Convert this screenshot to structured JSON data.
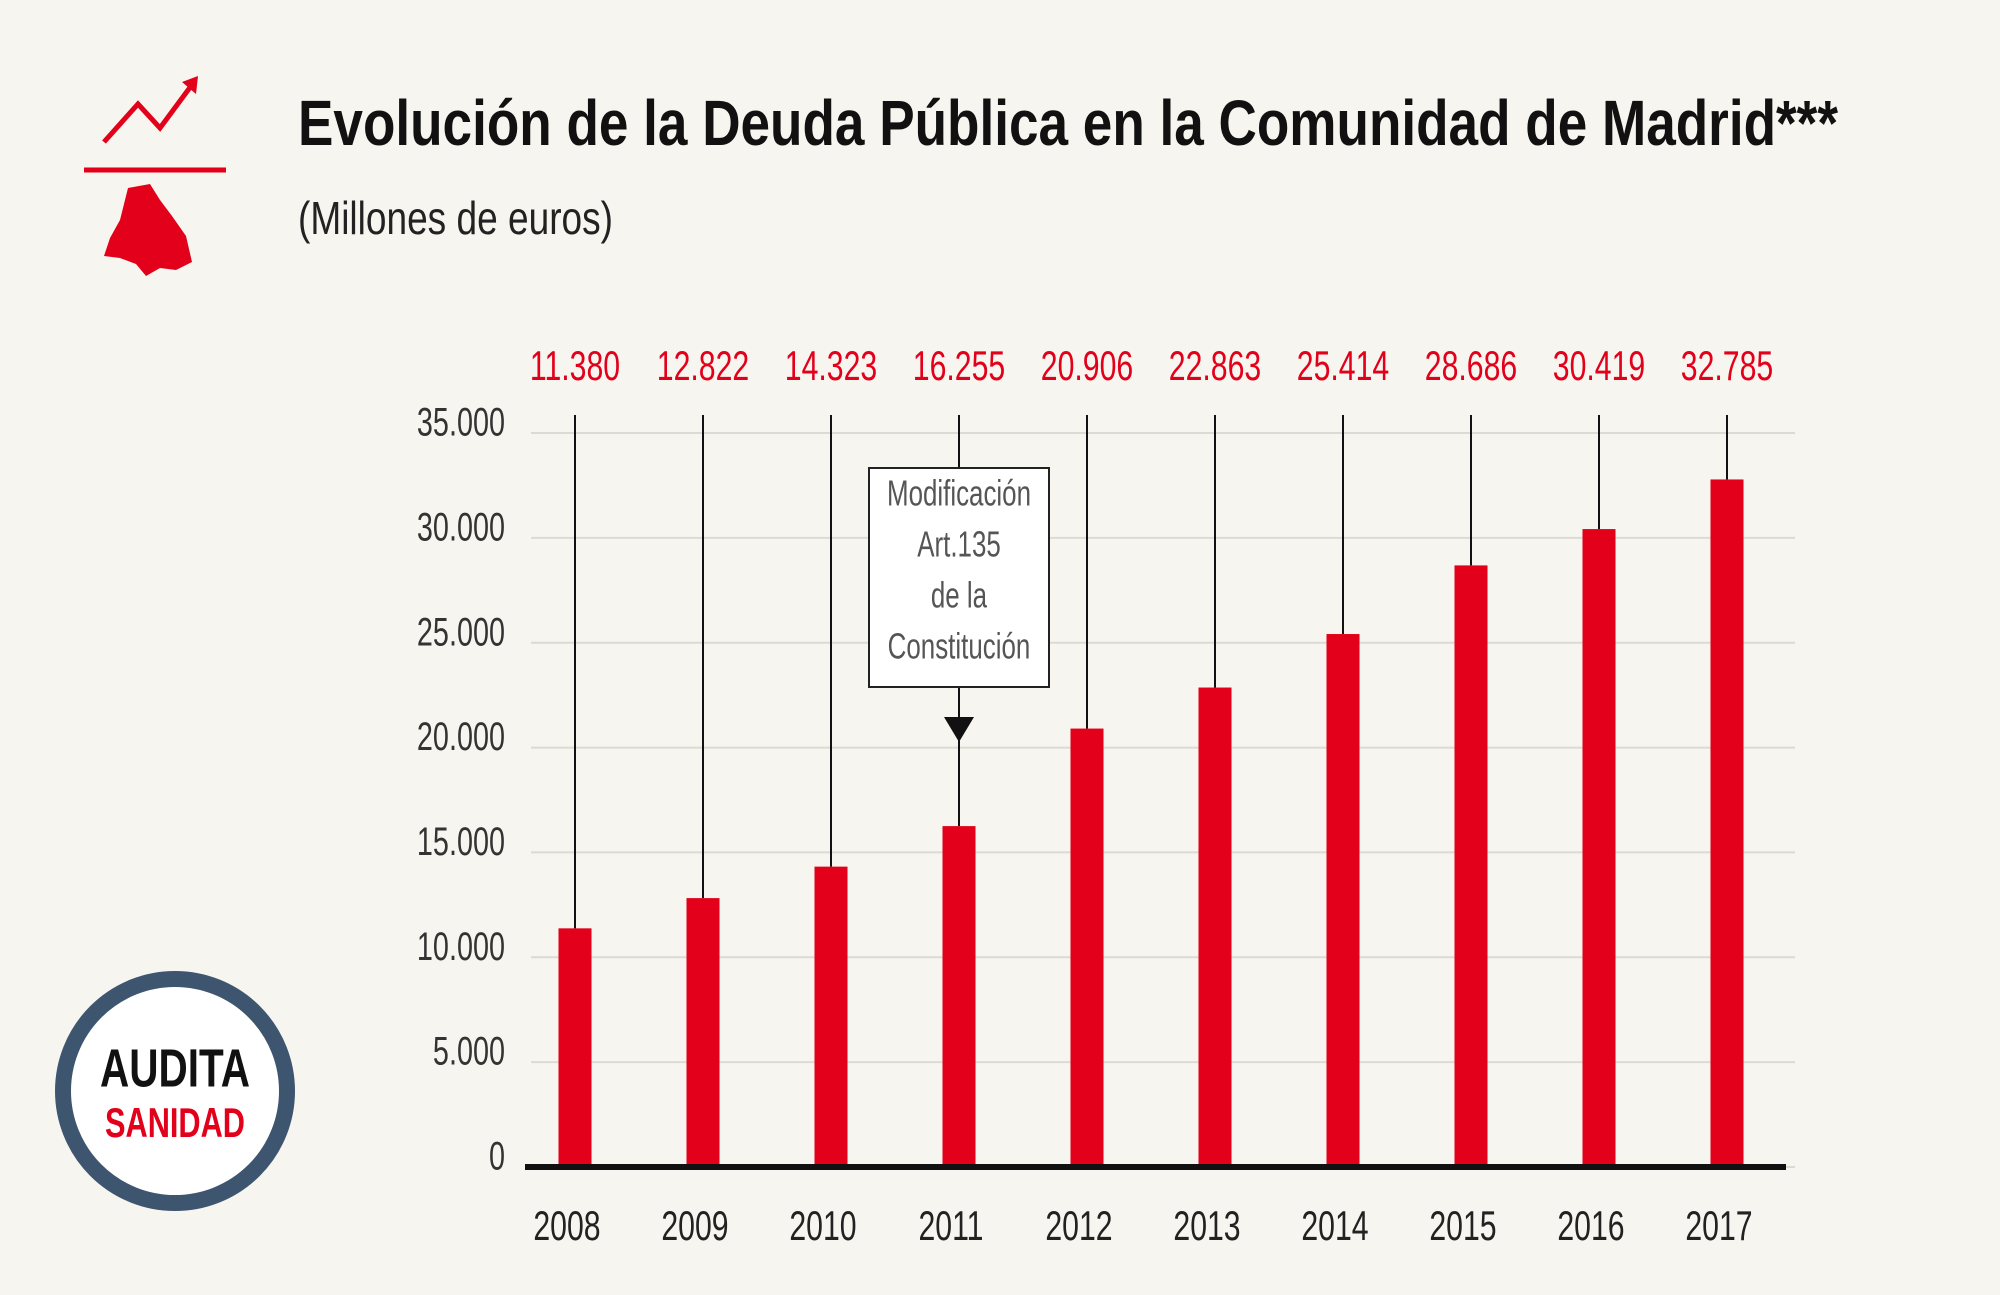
{
  "chart_data": {
    "type": "bar",
    "title": "Evolución de la Deuda Pública en la Comunidad de Madrid***",
    "subtitle": "(Millones de euros)",
    "categories": [
      "2008",
      "2009",
      "2010",
      "2011",
      "2012",
      "2013",
      "2014",
      "2015",
      "2016",
      "2017"
    ],
    "values": [
      11380,
      12822,
      14323,
      16255,
      20906,
      22863,
      25414,
      28686,
      30419,
      32785
    ],
    "value_labels": [
      "11.380",
      "12.822",
      "14.323",
      "16.255",
      "20.906",
      "22.863",
      "25.414",
      "28.686",
      "30.419",
      "32.785"
    ],
    "color": "#e2001a",
    "ylim": [
      0,
      35000
    ],
    "yticks": [
      0,
      {
        "value": 5000,
        "label": "5.000"
      },
      {
        "value": 10000,
        "label": "10.000"
      },
      {
        "value": 15000,
        "label": "15.000"
      },
      {
        "value": 20000,
        "label": "20.000"
      },
      {
        "value": 25000,
        "label": "25.000"
      },
      {
        "value": 30000,
        "label": "30.000"
      },
      {
        "value": 35000,
        "label": "35.000"
      }
    ],
    "grid": true,
    "annotation": {
      "category": "2011",
      "lines": [
        "Modificación",
        "Art.135",
        "de la",
        "Constitución"
      ]
    }
  },
  "logo": {
    "top": "AUDITA",
    "bottom": "SANIDAD"
  }
}
